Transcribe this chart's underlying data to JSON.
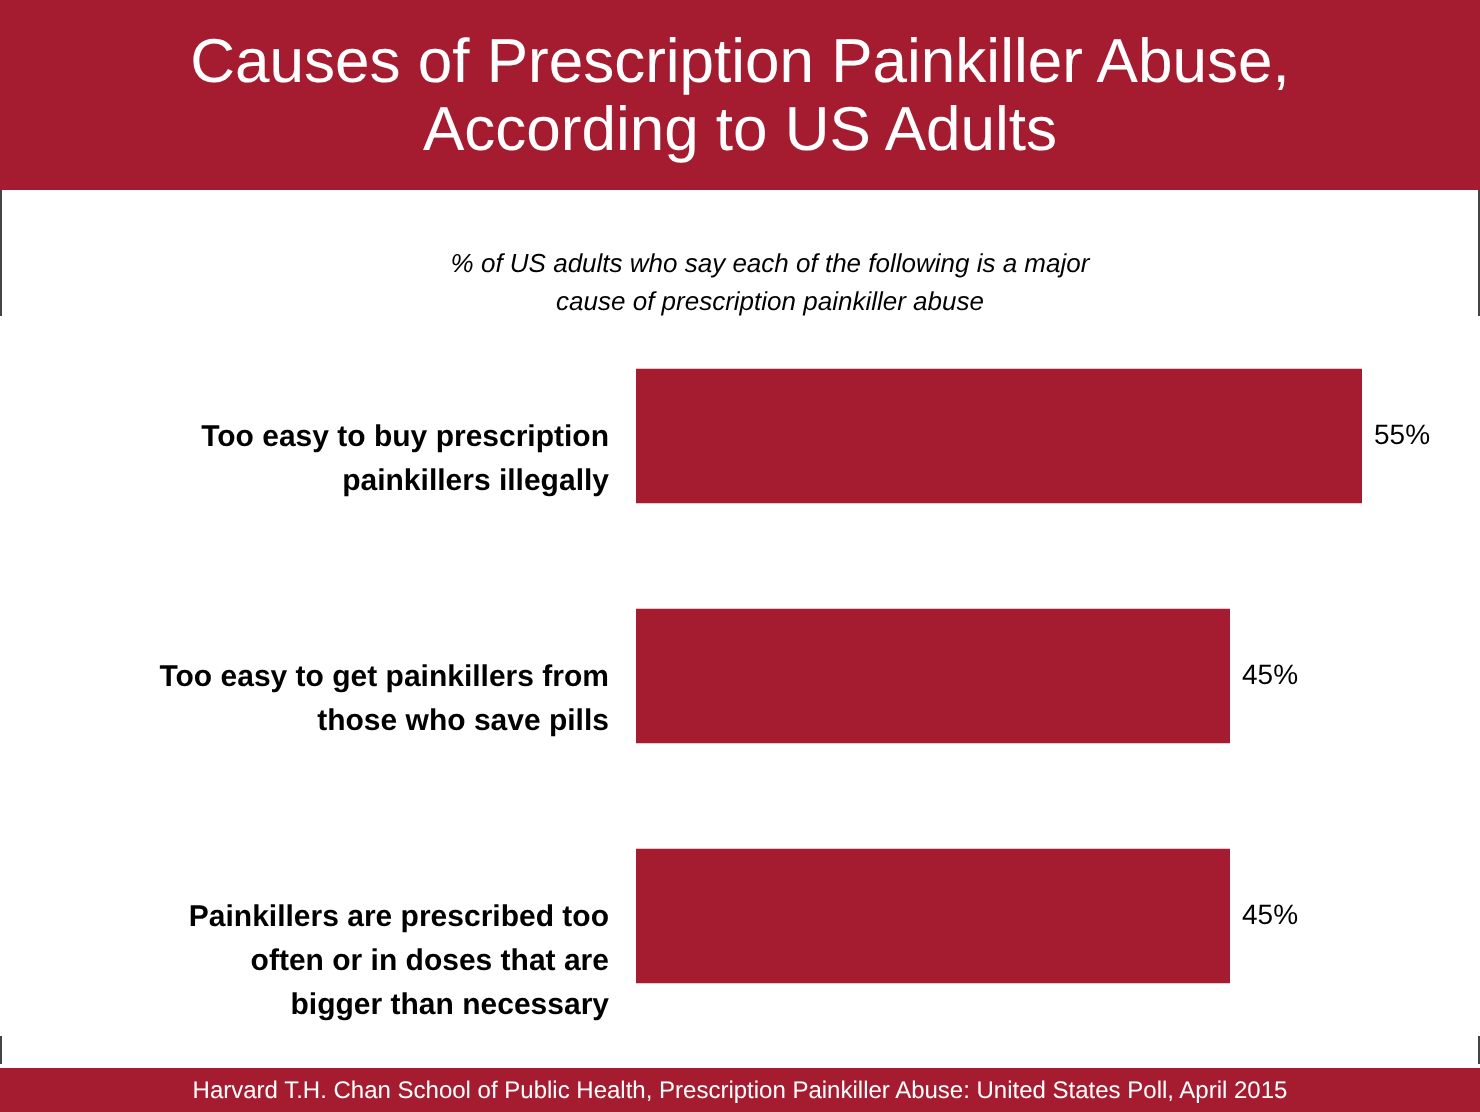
{
  "chart_data": {
    "type": "bar",
    "orientation": "horizontal",
    "title": "Causes of Prescription Painkiller Abuse, According to US Adults",
    "subtitle": "% of US adults who say each of the following is a major cause of prescription painkiller abuse",
    "categories": [
      "Too easy to buy prescription painkillers illegally",
      "Too easy to get painkillers from those who save pills",
      "Painkillers are prescribed too often or in doses that are bigger than necessary"
    ],
    "values": [
      55,
      45,
      45
    ],
    "value_labels": [
      "55%",
      "45%",
      "45%"
    ],
    "color": "#a51c30",
    "grid": false,
    "annotations": [
      "Harvard T.H. Chan School of Public Health, Prescription Painkiller Abuse: United States Poll, April 2015"
    ]
  }
}
